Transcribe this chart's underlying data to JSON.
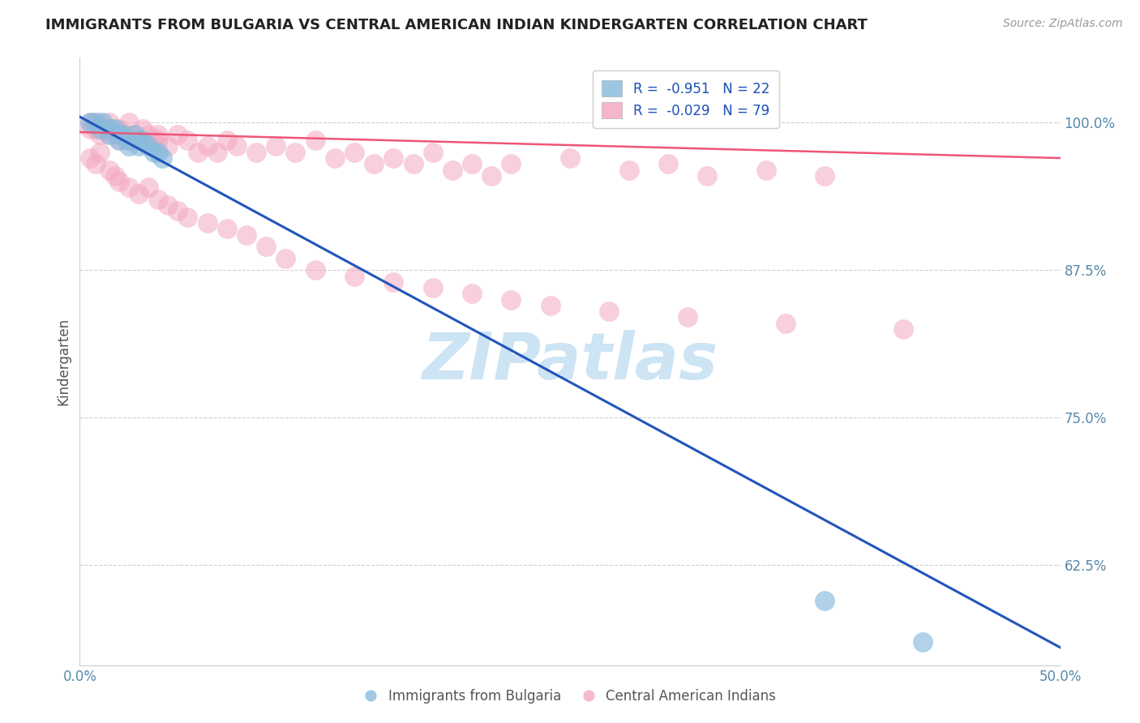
{
  "title": "IMMIGRANTS FROM BULGARIA VS CENTRAL AMERICAN INDIAN KINDERGARTEN CORRELATION CHART",
  "source": "Source: ZipAtlas.com",
  "ylabel": "Kindergarten",
  "yticks": [
    0.625,
    0.75,
    0.875,
    1.0
  ],
  "ytick_labels": [
    "62.5%",
    "75.0%",
    "87.5%",
    "100.0%"
  ],
  "xlim": [
    0.0,
    0.5
  ],
  "ylim": [
    0.54,
    1.055
  ],
  "legend_entries": [
    {
      "label": "R =  -0.951   N = 22",
      "color": "#a8c8e8"
    },
    {
      "label": "R =  -0.029   N = 79",
      "color": "#f4b0c8"
    }
  ],
  "bulgaria_color": "#88bbdd",
  "central_american_color": "#f4a8c0",
  "bulgaria_line_color": "#2255bb",
  "central_line_color": "#ee5577",
  "watermark_text": "ZIPatlas",
  "watermark_color": "#cce4f4",
  "background_color": "#ffffff",
  "grid_color": "#cccccc",
  "title_color": "#222222",
  "axis_label_color": "#5588aa",
  "legend_r_color": "#2255bb",
  "bulgaria_scatter_x": [
    0.005,
    0.008,
    0.01,
    0.012,
    0.015,
    0.015,
    0.018,
    0.02,
    0.02,
    0.022,
    0.025,
    0.025,
    0.028,
    0.03,
    0.03,
    0.032,
    0.035,
    0.038,
    0.04,
    0.042,
    0.38,
    0.43
  ],
  "bulgaria_scatter_y": [
    1.0,
    1.0,
    0.995,
    1.0,
    0.995,
    0.99,
    0.995,
    0.99,
    0.985,
    0.99,
    0.985,
    0.98,
    0.99,
    0.985,
    0.98,
    0.985,
    0.98,
    0.975,
    0.975,
    0.97,
    0.595,
    0.56
  ],
  "central_scatter_x": [
    0.005,
    0.005,
    0.007,
    0.008,
    0.01,
    0.01,
    0.012,
    0.015,
    0.015,
    0.018,
    0.02,
    0.02,
    0.022,
    0.025,
    0.025,
    0.028,
    0.03,
    0.032,
    0.035,
    0.038,
    0.04,
    0.04,
    0.045,
    0.05,
    0.055,
    0.06,
    0.065,
    0.07,
    0.075,
    0.08,
    0.09,
    0.1,
    0.11,
    0.12,
    0.13,
    0.14,
    0.15,
    0.16,
    0.17,
    0.18,
    0.19,
    0.2,
    0.21,
    0.22,
    0.25,
    0.28,
    0.3,
    0.32,
    0.35,
    0.38,
    0.005,
    0.008,
    0.01,
    0.015,
    0.018,
    0.02,
    0.025,
    0.03,
    0.035,
    0.04,
    0.045,
    0.05,
    0.055,
    0.065,
    0.075,
    0.085,
    0.095,
    0.105,
    0.12,
    0.14,
    0.16,
    0.18,
    0.2,
    0.22,
    0.24,
    0.27,
    0.31,
    0.36,
    0.42
  ],
  "central_scatter_y": [
    1.0,
    0.995,
    1.0,
    0.995,
    1.0,
    0.99,
    0.995,
    0.99,
    1.0,
    0.99,
    0.985,
    0.995,
    0.99,
    0.985,
    1.0,
    0.99,
    0.985,
    0.995,
    0.99,
    0.985,
    0.99,
    0.985,
    0.98,
    0.99,
    0.985,
    0.975,
    0.98,
    0.975,
    0.985,
    0.98,
    0.975,
    0.98,
    0.975,
    0.985,
    0.97,
    0.975,
    0.965,
    0.97,
    0.965,
    0.975,
    0.96,
    0.965,
    0.955,
    0.965,
    0.97,
    0.96,
    0.965,
    0.955,
    0.96,
    0.955,
    0.97,
    0.965,
    0.975,
    0.96,
    0.955,
    0.95,
    0.945,
    0.94,
    0.945,
    0.935,
    0.93,
    0.925,
    0.92,
    0.915,
    0.91,
    0.905,
    0.895,
    0.885,
    0.875,
    0.87,
    0.865,
    0.86,
    0.855,
    0.85,
    0.845,
    0.84,
    0.835,
    0.83,
    0.825
  ]
}
